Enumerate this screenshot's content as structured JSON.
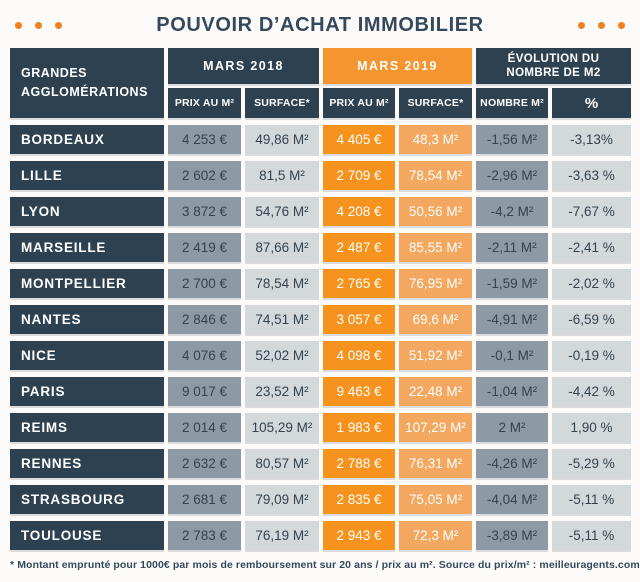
{
  "chart_data": {
    "type": "table",
    "title": "POUVOIR D’ACHAT IMMOBILIER",
    "column_groups": [
      {
        "label": "GRANDES AGGLOMÉRATIONS"
      },
      {
        "label": "MARS 2018"
      },
      {
        "label": "MARS 2019"
      },
      {
        "label": "ÉVOLUTION DU NOMBRE DE M2"
      }
    ],
    "columns": [
      "PRIX AU M²",
      "SURFACE*",
      "PRIX AU M²",
      "SURFACE*",
      "NOMBRE M²",
      "%"
    ],
    "rows": [
      {
        "city": "BORDEAUX",
        "prix_2018": "4 253 €",
        "surface_2018": "49,86 M²",
        "prix_2019": "4 405 €",
        "surface_2019": "48,3 M²",
        "evolution_m2": "-1,56 M²",
        "evolution_pct": "-3,13%"
      },
      {
        "city": "LILLE",
        "prix_2018": "2 602 €",
        "surface_2018": "81,5 M²",
        "prix_2019": "2 709 €",
        "surface_2019": "78,54 M²",
        "evolution_m2": "-2,96 M²",
        "evolution_pct": "-3,63 %"
      },
      {
        "city": "LYON",
        "prix_2018": "3 872 €",
        "surface_2018": "54,76 M²",
        "prix_2019": "4 208 €",
        "surface_2019": "50,56 M²",
        "evolution_m2": "-4,2 M²",
        "evolution_pct": "-7,67 %"
      },
      {
        "city": "MARSEILLE",
        "prix_2018": "2 419 €",
        "surface_2018": "87,66 M²",
        "prix_2019": "2 487 €",
        "surface_2019": "85,55 M²",
        "evolution_m2": "-2,11 M²",
        "evolution_pct": "-2,41 %"
      },
      {
        "city": "MONTPELLIER",
        "prix_2018": "2 700 €",
        "surface_2018": "78,54 M²",
        "prix_2019": "2 765 €",
        "surface_2019": "76,95 M²",
        "evolution_m2": "-1,59 M²",
        "evolution_pct": "-2,02 %"
      },
      {
        "city": "NANTES",
        "prix_2018": "2 846 €",
        "surface_2018": "74,51 M²",
        "prix_2019": "3 057 €",
        "surface_2019": "69,6 M²",
        "evolution_m2": "-4,91 M²",
        "evolution_pct": "-6,59 %"
      },
      {
        "city": "NICE",
        "prix_2018": "4 076 €",
        "surface_2018": "52,02 M²",
        "prix_2019": "4 098 €",
        "surface_2019": "51,92 M²",
        "evolution_m2": "-0,1 M²",
        "evolution_pct": "-0,19 %"
      },
      {
        "city": "PARIS",
        "prix_2018": "9 017 €",
        "surface_2018": "23,52 M²",
        "prix_2019": "9 463 €",
        "surface_2019": "22,48 M²",
        "evolution_m2": "-1,04 M²",
        "evolution_pct": "-4,42 %"
      },
      {
        "city": "REIMS",
        "prix_2018": "2 014 €",
        "surface_2018": "105,29 M²",
        "prix_2019": "1 983 €",
        "surface_2019": "107,29 M²",
        "evolution_m2": "2 M²",
        "evolution_pct": "1,90 %"
      },
      {
        "city": "RENNES",
        "prix_2018": "2 632 €",
        "surface_2018": "80,57 M²",
        "prix_2019": "2 788 €",
        "surface_2019": "76,31 M²",
        "evolution_m2": "-4,26 M²",
        "evolution_pct": "-5,29 %"
      },
      {
        "city": "STRASBOURG",
        "prix_2018": "2 681 €",
        "surface_2018": "79,09 M²",
        "prix_2019": "2 835 €",
        "surface_2019": "75,05 M²",
        "evolution_m2": "-4,04 M²",
        "evolution_pct": "-5,11 %"
      },
      {
        "city": "TOULOUSE",
        "prix_2018": "2 783 €",
        "surface_2018": "76,19 M²",
        "prix_2019": "2 943 €",
        "surface_2019": "72,3 M²",
        "evolution_m2": "-3,89 M²",
        "evolution_pct": "-5,11 %"
      }
    ],
    "footnote": "* Montant emprunté pour 1000€ par mois de remboursement sur 20 ans / prix au m². Source du prix/m² : meilleuragents.com"
  },
  "colors": {
    "navy": "#2d4150",
    "orange": "#f6921e",
    "orange_light": "#f3a75f",
    "orange_header": "#f5952f",
    "gray_medium": "#8d9aa5",
    "gray_light": "#d3d8da",
    "value_text": "#33434f",
    "title_text": "#35495c",
    "dot_orange": "#f0811f"
  }
}
